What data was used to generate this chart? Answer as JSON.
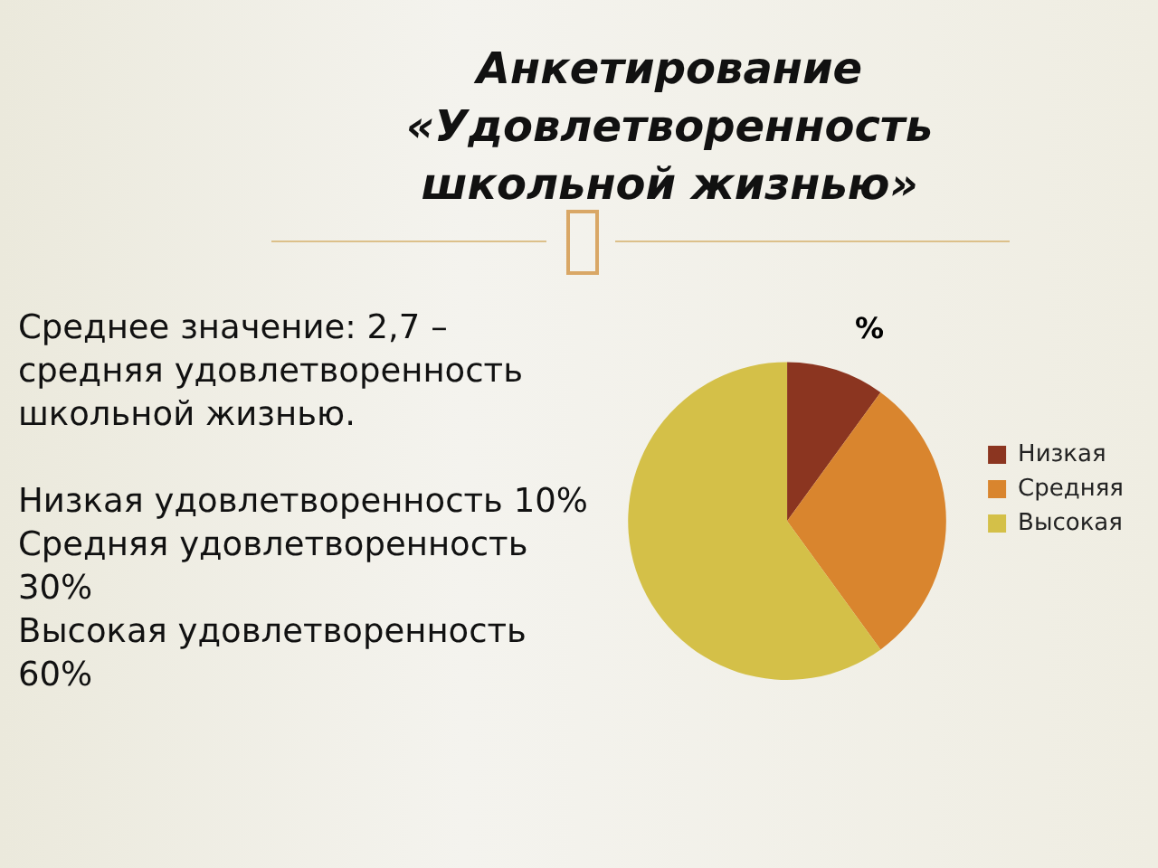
{
  "chart_data": {
    "type": "pie",
    "title": "Анкетирование «Удовлетворенность школьной жизнью»",
    "subtitle": "%",
    "categories": [
      "Низкая",
      "Средняя",
      "Высокая"
    ],
    "values": [
      10,
      30,
      60
    ],
    "colors": [
      "#8b3520",
      "#d9852e",
      "#d4c048"
    ],
    "legend": "right",
    "annotations": [
      "Среднее значение: 2,7 – средняя удовлетворенность школьной жизнью.",
      "Низкая удовлетворенность 10%",
      "Средняя удовлетворенность 30%",
      "Высокая удовлетворенность 60%"
    ]
  }
}
